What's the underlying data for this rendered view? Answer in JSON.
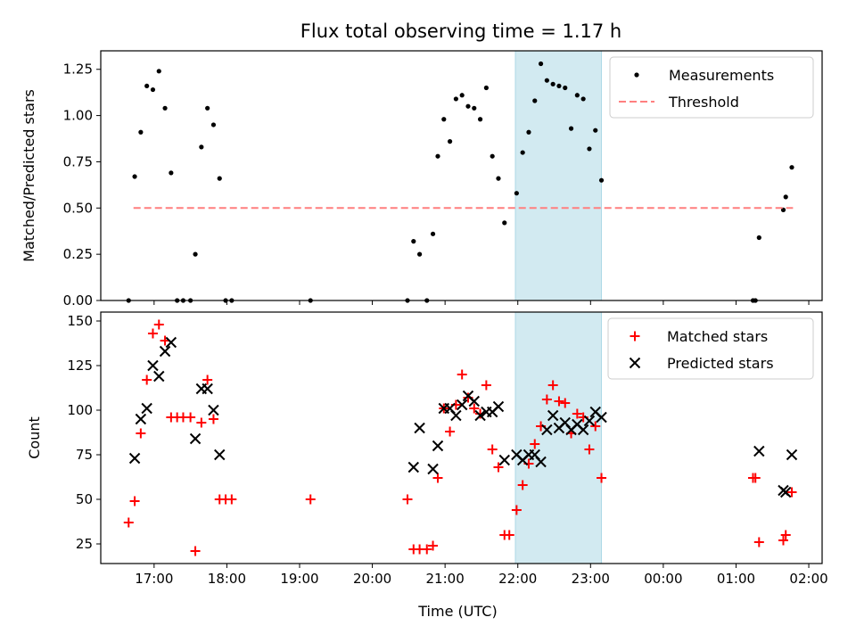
{
  "colors": {
    "measurement": "#000000",
    "threshold": "#ff7f7f",
    "matched": "#ff0000",
    "predicted": "#000000",
    "highlight": "#add8e6"
  },
  "chart_data": [
    {
      "type": "scatter",
      "title": "Flux total observing time = 1.17 h",
      "xlabel": "",
      "ylabel": "Matched/Predicted stars",
      "xlim": [
        "16:16",
        "02:11"
      ],
      "ylim": [
        0,
        1.35
      ],
      "x_tick_values": [
        "17:00",
        "18:00",
        "19:00",
        "20:00",
        "21:00",
        "22:00",
        "23:00",
        "00:00",
        "01:00",
        "02:00"
      ],
      "y_ticks": [
        0.0,
        0.25,
        0.5,
        0.75,
        1.0,
        1.25
      ],
      "y_tick_labels": [
        "0.00",
        "0.25",
        "0.50",
        "0.75",
        "1.00",
        "1.25"
      ],
      "highlight_span": [
        "21:58",
        "23:09"
      ],
      "legend": {
        "position": "top-right",
        "entries": [
          "Measurements",
          "Threshold"
        ]
      },
      "series": [
        {
          "name": "Measurements",
          "marker": "dot",
          "points": [
            [
              "16:39",
              0.0
            ],
            [
              "16:44",
              0.67
            ],
            [
              "16:49",
              0.91
            ],
            [
              "16:54",
              1.16
            ],
            [
              "16:59",
              1.14
            ],
            [
              "17:04",
              1.24
            ],
            [
              "17:09",
              1.04
            ],
            [
              "17:14",
              0.69
            ],
            [
              "17:19",
              0.0
            ],
            [
              "17:24",
              0.0
            ],
            [
              "17:30",
              0.0
            ],
            [
              "17:34",
              0.25
            ],
            [
              "17:39",
              0.83
            ],
            [
              "17:44",
              1.04
            ],
            [
              "17:49",
              0.95
            ],
            [
              "17:54",
              0.66
            ],
            [
              "17:59",
              0.0
            ],
            [
              "18:04",
              0.0
            ],
            [
              "19:09",
              0.0
            ],
            [
              "20:29",
              0.0
            ],
            [
              "20:34",
              0.32
            ],
            [
              "20:39",
              0.25
            ],
            [
              "20:45",
              0.0
            ],
            [
              "20:50",
              0.36
            ],
            [
              "20:54",
              0.78
            ],
            [
              "20:59",
              0.98
            ],
            [
              "21:04",
              0.86
            ],
            [
              "21:09",
              1.09
            ],
            [
              "21:14",
              1.11
            ],
            [
              "21:19",
              1.05
            ],
            [
              "21:24",
              1.04
            ],
            [
              "21:29",
              0.98
            ],
            [
              "21:34",
              1.15
            ],
            [
              "21:39",
              0.78
            ],
            [
              "21:44",
              0.66
            ],
            [
              "21:49",
              0.42
            ],
            [
              "21:59",
              0.58
            ],
            [
              "22:04",
              0.8
            ],
            [
              "22:09",
              0.91
            ],
            [
              "22:14",
              1.08
            ],
            [
              "22:19",
              1.28
            ],
            [
              "22:24",
              1.19
            ],
            [
              "22:29",
              1.17
            ],
            [
              "22:34",
              1.16
            ],
            [
              "22:39",
              1.15
            ],
            [
              "22:44",
              0.93
            ],
            [
              "22:49",
              1.11
            ],
            [
              "22:54",
              1.09
            ],
            [
              "22:59",
              0.82
            ],
            [
              "23:04",
              0.92
            ],
            [
              "23:09",
              0.65
            ],
            [
              "01:14",
              0.0
            ],
            [
              "01:16",
              0.0
            ],
            [
              "01:19",
              0.34
            ],
            [
              "01:39",
              0.49
            ],
            [
              "01:41",
              0.56
            ],
            [
              "01:46",
              0.72
            ]
          ]
        },
        {
          "name": "Threshold",
          "style": "dashed",
          "points": [
            [
              "16:43",
              0.5
            ],
            [
              "01:47",
              0.5
            ]
          ]
        }
      ]
    },
    {
      "type": "scatter",
      "title": "",
      "xlabel": "Time (UTC)",
      "ylabel": "Count",
      "xlim": [
        "16:16",
        "02:11"
      ],
      "ylim": [
        14,
        155
      ],
      "x_tick_values": [
        "17:00",
        "18:00",
        "19:00",
        "20:00",
        "21:00",
        "22:00",
        "23:00",
        "00:00",
        "01:00",
        "02:00"
      ],
      "x_tick_labels": [
        "17:00",
        "18:00",
        "19:00",
        "20:00",
        "21:00",
        "22:00",
        "23:00",
        "00:00",
        "01:00",
        "02:00"
      ],
      "y_ticks": [
        25,
        50,
        75,
        100,
        125,
        150
      ],
      "y_tick_labels": [
        "25",
        "50",
        "75",
        "100",
        "125",
        "150"
      ],
      "highlight_span": [
        "21:58",
        "23:09"
      ],
      "legend": {
        "position": "top-right",
        "entries": [
          "Matched stars",
          "Predicted stars"
        ]
      },
      "series": [
        {
          "name": "Matched stars",
          "marker": "plus",
          "points": [
            [
              "16:39",
              37
            ],
            [
              "16:44",
              49
            ],
            [
              "16:49",
              87
            ],
            [
              "16:54",
              117
            ],
            [
              "16:59",
              143
            ],
            [
              "17:04",
              148
            ],
            [
              "17:09",
              139
            ],
            [
              "17:14",
              96
            ],
            [
              "17:19",
              96
            ],
            [
              "17:24",
              96
            ],
            [
              "17:30",
              96
            ],
            [
              "17:34",
              21
            ],
            [
              "17:39",
              93
            ],
            [
              "17:44",
              117
            ],
            [
              "17:49",
              95
            ],
            [
              "17:54",
              50
            ],
            [
              "17:59",
              50
            ],
            [
              "18:04",
              50
            ],
            [
              "19:09",
              50
            ],
            [
              "20:29",
              50
            ],
            [
              "20:34",
              22
            ],
            [
              "20:39",
              22
            ],
            [
              "20:45",
              22
            ],
            [
              "20:50",
              24
            ],
            [
              "20:54",
              62
            ],
            [
              "20:59",
              101
            ],
            [
              "21:04",
              88
            ],
            [
              "21:09",
              103
            ],
            [
              "21:14",
              120
            ],
            [
              "21:19",
              107
            ],
            [
              "21:24",
              101
            ],
            [
              "21:29",
              98
            ],
            [
              "21:34",
              114
            ],
            [
              "21:39",
              78
            ],
            [
              "21:44",
              68
            ],
            [
              "21:49",
              30
            ],
            [
              "21:53",
              30
            ],
            [
              "21:59",
              44
            ],
            [
              "22:04",
              58
            ],
            [
              "22:09",
              70
            ],
            [
              "22:14",
              81
            ],
            [
              "22:19",
              91
            ],
            [
              "22:24",
              106
            ],
            [
              "22:29",
              114
            ],
            [
              "22:34",
              105
            ],
            [
              "22:39",
              104
            ],
            [
              "22:44",
              87
            ],
            [
              "22:49",
              98
            ],
            [
              "22:54",
              96
            ],
            [
              "22:59",
              78
            ],
            [
              "23:04",
              91
            ],
            [
              "23:09",
              62
            ],
            [
              "01:14",
              62
            ],
            [
              "01:16",
              62
            ],
            [
              "01:19",
              26
            ],
            [
              "01:39",
              27
            ],
            [
              "01:41",
              30
            ],
            [
              "01:46",
              54
            ]
          ]
        },
        {
          "name": "Predicted stars",
          "marker": "x",
          "points": [
            [
              "16:44",
              73
            ],
            [
              "16:49",
              95
            ],
            [
              "16:54",
              101
            ],
            [
              "16:59",
              125
            ],
            [
              "17:04",
              119
            ],
            [
              "17:09",
              133
            ],
            [
              "17:14",
              138
            ],
            [
              "17:34",
              84
            ],
            [
              "17:39",
              112
            ],
            [
              "17:44",
              112
            ],
            [
              "17:49",
              100
            ],
            [
              "17:54",
              75
            ],
            [
              "20:34",
              68
            ],
            [
              "20:39",
              90
            ],
            [
              "20:50",
              67
            ],
            [
              "20:54",
              80
            ],
            [
              "20:59",
              101
            ],
            [
              "21:04",
              101
            ],
            [
              "21:09",
              97
            ],
            [
              "21:14",
              103
            ],
            [
              "21:19",
              108
            ],
            [
              "21:24",
              105
            ],
            [
              "21:29",
              97
            ],
            [
              "21:34",
              99
            ],
            [
              "21:39",
              99
            ],
            [
              "21:44",
              102
            ],
            [
              "21:49",
              72
            ],
            [
              "21:59",
              75
            ],
            [
              "22:04",
              72
            ],
            [
              "22:09",
              75
            ],
            [
              "22:14",
              75
            ],
            [
              "22:19",
              71
            ],
            [
              "22:24",
              89
            ],
            [
              "22:29",
              97
            ],
            [
              "22:34",
              90
            ],
            [
              "22:39",
              93
            ],
            [
              "22:44",
              89
            ],
            [
              "22:49",
              92
            ],
            [
              "22:54",
              89
            ],
            [
              "22:59",
              94
            ],
            [
              "23:04",
              99
            ],
            [
              "23:09",
              96
            ],
            [
              "01:19",
              77
            ],
            [
              "01:39",
              55
            ],
            [
              "01:41",
              54
            ],
            [
              "01:46",
              75
            ]
          ]
        }
      ]
    }
  ]
}
